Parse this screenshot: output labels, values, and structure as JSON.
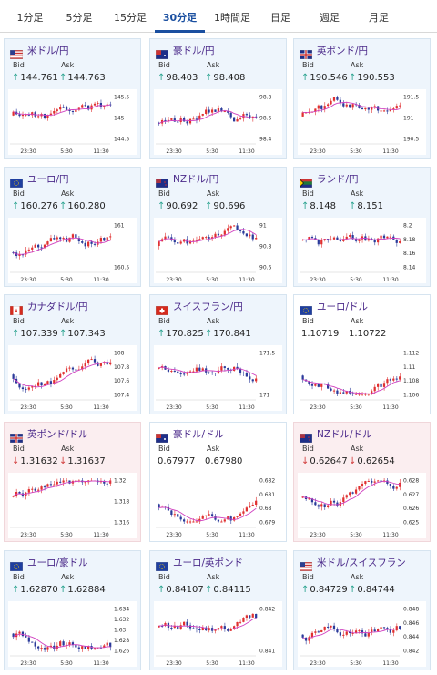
{
  "tabs": [
    "1分足",
    "5分足",
    "15分足",
    "30分足",
    "1時間足",
    "日足",
    "週足",
    "月足"
  ],
  "active_tab": "30分足",
  "labels": {
    "bid": "Bid",
    "ask": "Ask"
  },
  "colors": {
    "up_arrow": "#2aa38f",
    "down_arrow": "#d23c3c",
    "bull": "#e03030",
    "bear": "#2a3a9a",
    "ma": "#d040c0",
    "pair_name": "#4b2a8a"
  },
  "x_ticks": [
    "23:30",
    "5:30",
    "11:30"
  ],
  "pairs": [
    {
      "name": "米ドル/円",
      "flag": "us-jp-flag-icon",
      "bid": "144.761",
      "ask": "144.763",
      "dir": "up",
      "bg": "blue",
      "y_ticks": [
        "145.5",
        "145",
        "144.5"
      ]
    },
    {
      "name": "豪ドル/円",
      "flag": "au-jp-flag-icon",
      "bid": "98.403",
      "ask": "98.408",
      "dir": "up",
      "bg": "blue",
      "y_ticks": [
        "98.8",
        "98.6",
        "98.4"
      ]
    },
    {
      "name": "英ポンド/円",
      "flag": "gb-jp-flag-icon",
      "bid": "190.546",
      "ask": "190.553",
      "dir": "up",
      "bg": "blue",
      "y_ticks": [
        "191.5",
        "191",
        "190.5"
      ]
    },
    {
      "name": "ユーロ/円",
      "flag": "eu-jp-flag-icon",
      "bid": "160.276",
      "ask": "160.280",
      "dir": "up",
      "bg": "blue",
      "y_ticks": [
        "161",
        "160.5"
      ]
    },
    {
      "name": "NZドル/円",
      "flag": "nz-jp-flag-icon",
      "bid": "90.692",
      "ask": "90.696",
      "dir": "up",
      "bg": "blue",
      "y_ticks": [
        "91",
        "90.8",
        "90.6"
      ]
    },
    {
      "name": "ランド/円",
      "flag": "za-jp-flag-icon",
      "bid": "8.148",
      "ask": "8.151",
      "dir": "up",
      "bg": "blue",
      "y_ticks": [
        "8.2",
        "8.18",
        "8.16",
        "8.14"
      ]
    },
    {
      "name": "カナダドル/円",
      "flag": "ca-jp-flag-icon",
      "bid": "107.339",
      "ask": "107.343",
      "dir": "up",
      "bg": "blue",
      "y_ticks": [
        "108",
        "107.8",
        "107.6",
        "107.4"
      ]
    },
    {
      "name": "スイスフラン/円",
      "flag": "ch-jp-flag-icon",
      "bid": "170.825",
      "ask": "170.841",
      "dir": "up",
      "bg": "blue",
      "y_ticks": [
        "171.5",
        "171"
      ]
    },
    {
      "name": "ユーロ/ドル",
      "flag": "eu-us-flag-icon",
      "bid": "1.10719",
      "ask": "1.10722",
      "dir": "none",
      "bg": "white",
      "y_ticks": [
        "1.112",
        "1.11",
        "1.108",
        "1.106"
      ]
    },
    {
      "name": "英ポンド/ドル",
      "flag": "gb-us-flag-icon",
      "bid": "1.31632",
      "ask": "1.31637",
      "dir": "down",
      "bg": "pink",
      "y_ticks": [
        "1.32",
        "1.318",
        "1.316"
      ]
    },
    {
      "name": "豪ドル/ドル",
      "flag": "au-us-flag-icon",
      "bid": "0.67977",
      "ask": "0.67980",
      "dir": "none",
      "bg": "white",
      "y_ticks": [
        "0.682",
        "0.681",
        "0.68",
        "0.679"
      ]
    },
    {
      "name": "NZドル/ドル",
      "flag": "nz-us-flag-icon",
      "bid": "0.62647",
      "ask": "0.62654",
      "dir": "down",
      "bg": "pink",
      "y_ticks": [
        "0.628",
        "0.627",
        "0.626",
        "0.625"
      ]
    },
    {
      "name": "ユーロ/豪ドル",
      "flag": "eu-au-flag-icon",
      "bid": "1.62870",
      "ask": "1.62884",
      "dir": "up",
      "bg": "blue",
      "y_ticks": [
        "1.634",
        "1.632",
        "1.63",
        "1.628",
        "1.626"
      ]
    },
    {
      "name": "ユーロ/英ポンド",
      "flag": "eu-gb-flag-icon",
      "bid": "0.84107",
      "ask": "0.84115",
      "dir": "up",
      "bg": "blue",
      "y_ticks": [
        "0.842",
        "0.841"
      ]
    },
    {
      "name": "米ドル/スイスフラン",
      "flag": "us-ch-flag-icon",
      "bid": "0.84729",
      "ask": "0.84744",
      "dir": "up",
      "bg": "blue",
      "y_ticks": [
        "0.848",
        "0.846",
        "0.844",
        "0.842"
      ]
    }
  ]
}
